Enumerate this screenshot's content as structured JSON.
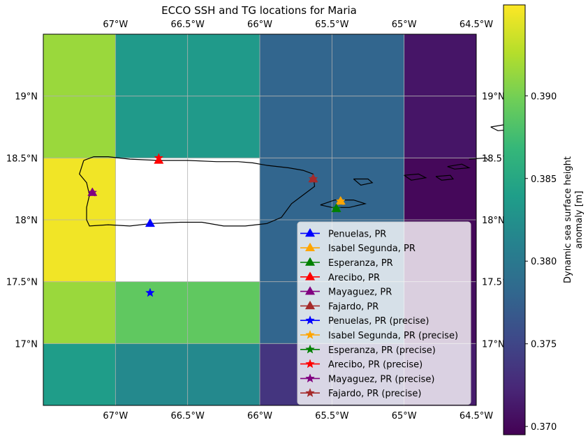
{
  "chart_data": {
    "type": "heatmap",
    "title": "ECCO SSH and TG locations for Maria",
    "x_range": [
      -67.5,
      -64.5
    ],
    "y_range": [
      16.5,
      19.5
    ],
    "x_ticks": [
      {
        "value": -67.0,
        "label": "67°W"
      },
      {
        "value": -66.5,
        "label": "66.5°W"
      },
      {
        "value": -66.0,
        "label": "66°W"
      },
      {
        "value": -65.5,
        "label": "65.5°W"
      },
      {
        "value": -65.0,
        "label": "65°W"
      },
      {
        "value": -64.5,
        "label": "64.5°W"
      }
    ],
    "y_ticks": [
      {
        "value": 17.0,
        "label": "17°N"
      },
      {
        "value": 17.5,
        "label": "17.5°N"
      },
      {
        "value": 18.0,
        "label": "18°N"
      },
      {
        "value": 18.5,
        "label": "18.5°N"
      },
      {
        "value": 19.0,
        "label": "19°N"
      }
    ],
    "grid": true,
    "grid_cells": {
      "x_edges": [
        -67.5,
        -67.0,
        -66.0,
        -65.0,
        -64.5
      ],
      "y_edges": [
        16.5,
        17.0,
        17.5,
        18.5,
        19.5
      ],
      "values": [
        [
          0.3838,
          0.3818,
          0.3735,
          0.3715
        ],
        [
          0.3915,
          0.389,
          0.378,
          0.3705
        ],
        [
          0.395,
          null,
          0.378,
          0.37
        ],
        [
          0.3915,
          0.3835,
          0.378,
          0.371
        ]
      ]
    },
    "colorbar": {
      "label": "Dynamic sea surface height anomaly [m]",
      "vmin": 0.3695,
      "vmax": 0.3955,
      "ticks": [
        {
          "value": 0.37,
          "label": "0.370"
        },
        {
          "value": 0.375,
          "label": "0.375"
        },
        {
          "value": 0.38,
          "label": "0.380"
        },
        {
          "value": 0.385,
          "label": "0.385"
        },
        {
          "value": 0.39,
          "label": "0.390"
        }
      ],
      "colormap": "viridis"
    },
    "series": [
      {
        "name": "Penuelas, PR",
        "marker": "triangle",
        "color": "#0000ff",
        "lon": -66.76,
        "lat": 17.97
      },
      {
        "name": "Isabel Segunda, PR",
        "marker": "triangle",
        "color": "#ffa500",
        "lon": -65.44,
        "lat": 18.15
      },
      {
        "name": "Esperanza, PR",
        "marker": "triangle",
        "color": "#008000",
        "lon": -65.47,
        "lat": 18.09
      },
      {
        "name": "Arecibo, PR",
        "marker": "triangle",
        "color": "#ff0000",
        "lon": -66.7,
        "lat": 18.48
      },
      {
        "name": "Mayaguez, PR",
        "marker": "triangle",
        "color": "#800080",
        "lon": -67.16,
        "lat": 18.22
      },
      {
        "name": "Fajardo, PR",
        "marker": "triangle",
        "color": "#a52a2a",
        "lon": -65.63,
        "lat": 18.33
      },
      {
        "name": "Penuelas, PR (precise)",
        "marker": "star",
        "color": "#0000ff",
        "lon": -66.76,
        "lat": 17.41
      },
      {
        "name": "Isabel Segunda, PR (precise)",
        "marker": "star",
        "color": "#ffa500",
        "lon": -65.44,
        "lat": 18.15
      },
      {
        "name": "Esperanza, PR (precise)",
        "marker": "star",
        "color": "#008000",
        "lon": -65.47,
        "lat": 18.09
      },
      {
        "name": "Arecibo, PR (precise)",
        "marker": "star",
        "color": "#ff0000",
        "lon": -66.7,
        "lat": 18.5
      },
      {
        "name": "Mayaguez, PR (precise)",
        "marker": "star",
        "color": "#800080",
        "lon": -67.16,
        "lat": 18.22
      },
      {
        "name": "Fajardo, PR (precise)",
        "marker": "star",
        "color": "#a52a2a",
        "lon": -65.63,
        "lat": 18.33
      }
    ],
    "legend_position": "lower-right",
    "coastlines": [
      [
        [
          -67.22,
          18.48
        ],
        [
          -67.15,
          18.51
        ],
        [
          -67.05,
          18.51
        ],
        [
          -66.9,
          18.49
        ],
        [
          -66.7,
          18.48
        ],
        [
          -66.5,
          18.48
        ],
        [
          -66.3,
          18.47
        ],
        [
          -66.15,
          18.47
        ],
        [
          -66.05,
          18.46
        ],
        [
          -65.95,
          18.44
        ],
        [
          -65.8,
          18.42
        ],
        [
          -65.7,
          18.4
        ],
        [
          -65.63,
          18.37
        ],
        [
          -65.62,
          18.27
        ],
        [
          -65.7,
          18.2
        ],
        [
          -65.78,
          18.13
        ],
        [
          -65.85,
          18.02
        ],
        [
          -65.95,
          17.97
        ],
        [
          -66.1,
          17.95
        ],
        [
          -66.25,
          17.95
        ],
        [
          -66.4,
          17.98
        ],
        [
          -66.55,
          17.98
        ],
        [
          -66.75,
          17.97
        ],
        [
          -66.9,
          17.95
        ],
        [
          -67.05,
          17.96
        ],
        [
          -67.18,
          17.95
        ],
        [
          -67.2,
          18.0
        ],
        [
          -67.2,
          18.1
        ],
        [
          -67.18,
          18.2
        ],
        [
          -67.2,
          18.3
        ],
        [
          -67.25,
          18.37
        ],
        [
          -67.22,
          18.48
        ]
      ],
      [
        [
          -65.58,
          18.12
        ],
        [
          -65.48,
          18.16
        ],
        [
          -65.35,
          18.16
        ],
        [
          -65.27,
          18.13
        ],
        [
          -65.38,
          18.1
        ],
        [
          -65.5,
          18.1
        ],
        [
          -65.58,
          18.12
        ]
      ],
      [
        [
          -65.35,
          18.33
        ],
        [
          -65.25,
          18.33
        ],
        [
          -65.22,
          18.3
        ],
        [
          -65.3,
          18.28
        ],
        [
          -65.35,
          18.33
        ]
      ],
      [
        [
          -65.0,
          18.36
        ],
        [
          -64.9,
          18.37
        ],
        [
          -64.85,
          18.34
        ],
        [
          -64.95,
          18.32
        ],
        [
          -65.0,
          18.36
        ]
      ],
      [
        [
          -64.78,
          18.35
        ],
        [
          -64.68,
          18.36
        ],
        [
          -64.66,
          18.33
        ],
        [
          -64.74,
          18.32
        ],
        [
          -64.78,
          18.35
        ]
      ],
      [
        [
          -64.7,
          18.43
        ],
        [
          -64.6,
          18.45
        ],
        [
          -64.55,
          18.42
        ],
        [
          -64.65,
          18.41
        ],
        [
          -64.7,
          18.43
        ]
      ],
      [
        [
          -64.55,
          18.49
        ],
        [
          -64.43,
          18.5
        ],
        [
          -64.42,
          18.48
        ]
      ],
      [
        [
          -64.4,
          18.75
        ],
        [
          -64.3,
          18.77
        ],
        [
          -64.25,
          18.73
        ],
        [
          -64.35,
          18.72
        ],
        [
          -64.4,
          18.75
        ]
      ]
    ]
  }
}
